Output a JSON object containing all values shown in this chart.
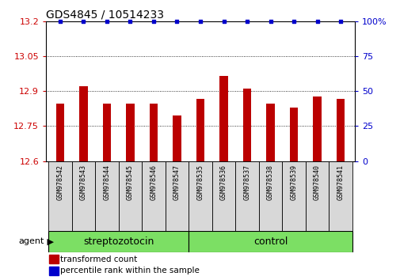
{
  "title": "GDS4845 / 10514233",
  "samples": [
    "GSM978542",
    "GSM978543",
    "GSM978544",
    "GSM978545",
    "GSM978546",
    "GSM978547",
    "GSM978535",
    "GSM978536",
    "GSM978537",
    "GSM978538",
    "GSM978539",
    "GSM978540",
    "GSM978541"
  ],
  "red_values": [
    12.845,
    12.92,
    12.845,
    12.845,
    12.845,
    12.795,
    12.865,
    12.965,
    12.91,
    12.845,
    12.83,
    12.875,
    12.865
  ],
  "blue_values": [
    100,
    100,
    100,
    100,
    100,
    100,
    100,
    100,
    100,
    100,
    100,
    100,
    100
  ],
  "ylim_left": [
    12.6,
    13.2
  ],
  "ylim_right": [
    0,
    100
  ],
  "yticks_left": [
    12.6,
    12.75,
    12.9,
    13.05,
    13.2
  ],
  "yticks_right": [
    0,
    25,
    50,
    75,
    100
  ],
  "ytick_labels_left": [
    "12.6",
    "12.75",
    "12.9",
    "13.05",
    "13.2"
  ],
  "ytick_labels_right": [
    "0",
    "25",
    "50",
    "75",
    "100%"
  ],
  "groups": [
    {
      "label": "streptozotocin",
      "start": 0,
      "end": 6,
      "color": "#7cdf64"
    },
    {
      "label": "control",
      "start": 6,
      "end": 13,
      "color": "#7cdf64"
    }
  ],
  "agent_label": "agent",
  "legend_red": "transformed count",
  "legend_blue": "percentile rank within the sample",
  "bar_color_red": "#bb0000",
  "bar_color_blue": "#0000cc",
  "background_color": "#ffffff",
  "tick_label_color_left": "#cc0000",
  "tick_label_color_right": "#0000cc",
  "title_fontsize": 10,
  "tick_fontsize": 8,
  "label_fontsize": 8,
  "sample_label_fontsize": 6,
  "group_label_fontsize": 9,
  "bar_width": 0.35
}
